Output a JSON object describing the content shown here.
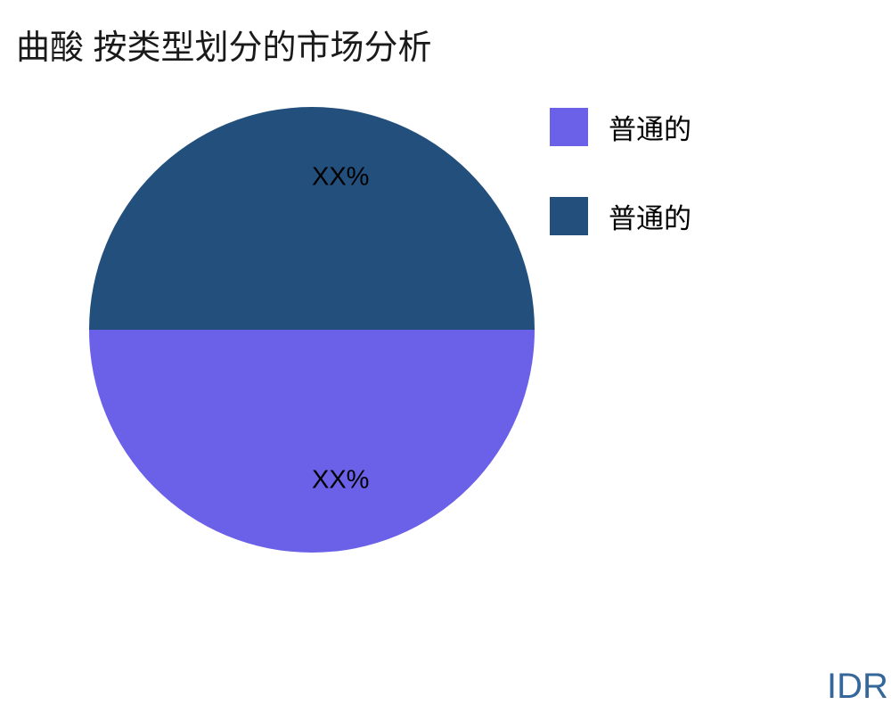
{
  "title": "曲酸 按类型划分的市场分析",
  "watermark": "IDR",
  "colors": {
    "title_text": "#1a1a1a",
    "slice_label_text": "#000000",
    "watermark_text": "#35679A",
    "background": "#ffffff"
  },
  "chart_data": {
    "type": "pie",
    "title": "曲酸 按类型划分的市场分析",
    "labels": [
      "普通的",
      "普通的"
    ],
    "values": [
      50,
      50
    ],
    "slice_labels": [
      "XX%",
      "XX%"
    ],
    "colors": [
      "#6B61E9",
      "#234F7D"
    ],
    "start_angle": 180,
    "counterclockwise": true,
    "label_distance": 0.68,
    "legend_position": "right"
  }
}
